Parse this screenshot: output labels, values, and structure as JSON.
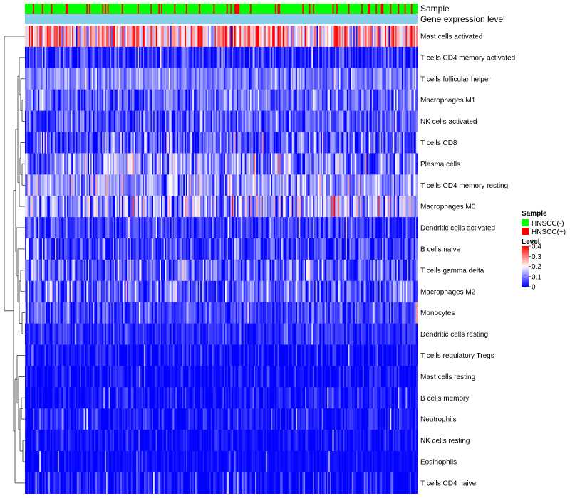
{
  "chart_data": {
    "type": "heatmap",
    "title": "",
    "n_samples": 300,
    "annotations": [
      {
        "key": "sample",
        "label": "Sample"
      },
      {
        "key": "gene",
        "label": "Gene expression level"
      }
    ],
    "rows": [
      {
        "label": "Mast cells activated",
        "mean": 0.25,
        "sd": 0.1
      },
      {
        "label": "T cells CD4 memory activated",
        "mean": 0.03,
        "sd": 0.05
      },
      {
        "label": "T cells follicular helper",
        "mean": 0.1,
        "sd": 0.04
      },
      {
        "label": "Macrophages M1",
        "mean": 0.08,
        "sd": 0.05
      },
      {
        "label": "NK cells activated",
        "mean": 0.06,
        "sd": 0.05
      },
      {
        "label": "T cells CD8",
        "mean": 0.06,
        "sd": 0.07
      },
      {
        "label": "Plasma cells",
        "mean": 0.1,
        "sd": 0.07
      },
      {
        "label": "T cells CD4 memory resting",
        "mean": 0.12,
        "sd": 0.06
      },
      {
        "label": "Macrophages M0",
        "mean": 0.13,
        "sd": 0.08
      },
      {
        "label": "Dendritic cells activated",
        "mean": 0.04,
        "sd": 0.05
      },
      {
        "label": "B cells naive",
        "mean": 0.05,
        "sd": 0.05
      },
      {
        "label": "T cells gamma delta",
        "mean": 0.07,
        "sd": 0.06
      },
      {
        "label": "Macrophages M2",
        "mean": 0.07,
        "sd": 0.06
      },
      {
        "label": "Monocytes",
        "mean": 0.05,
        "sd": 0.04
      },
      {
        "label": "Dendritic cells resting",
        "mean": 0.03,
        "sd": 0.03
      },
      {
        "label": "T cells regulatory  Tregs",
        "mean": 0.01,
        "sd": 0.03
      },
      {
        "label": "Mast cells resting",
        "mean": 0.005,
        "sd": 0.03
      },
      {
        "label": "B cells memory",
        "mean": 0.01,
        "sd": 0.03
      },
      {
        "label": "Neutrophils",
        "mean": 0.02,
        "sd": 0.03
      },
      {
        "label": "NK cells resting",
        "mean": 0.01,
        "sd": 0.025
      },
      {
        "label": "Eosinophils",
        "mean": 0.005,
        "sd": 0.015
      },
      {
        "label": "T cells CD4 naive",
        "mean": 0.01,
        "sd": 0.04
      }
    ],
    "sample_groups": [
      "HNSCC(-)",
      "HNSCC(+)"
    ],
    "sample_group_ratio_positive": 0.2,
    "gene_level_color": "#87CEEB",
    "color_scale": {
      "min": 0,
      "max": 0.4,
      "stops": [
        {
          "value": 0,
          "color": "#0000ff"
        },
        {
          "value": 0.2,
          "color": "#ffffff"
        },
        {
          "value": 0.4,
          "color": "#ff0000"
        }
      ],
      "ticks": [
        0.4,
        0.3,
        0.2,
        0.1,
        0
      ]
    },
    "legend": {
      "sample_title": "Sample",
      "sample_items": [
        {
          "label": "HNSCC(-)",
          "color": "#00ff00"
        },
        {
          "label": "HNSCC(+)",
          "color": "#ff0000"
        }
      ],
      "level_title": "Level",
      "position": "right"
    }
  }
}
